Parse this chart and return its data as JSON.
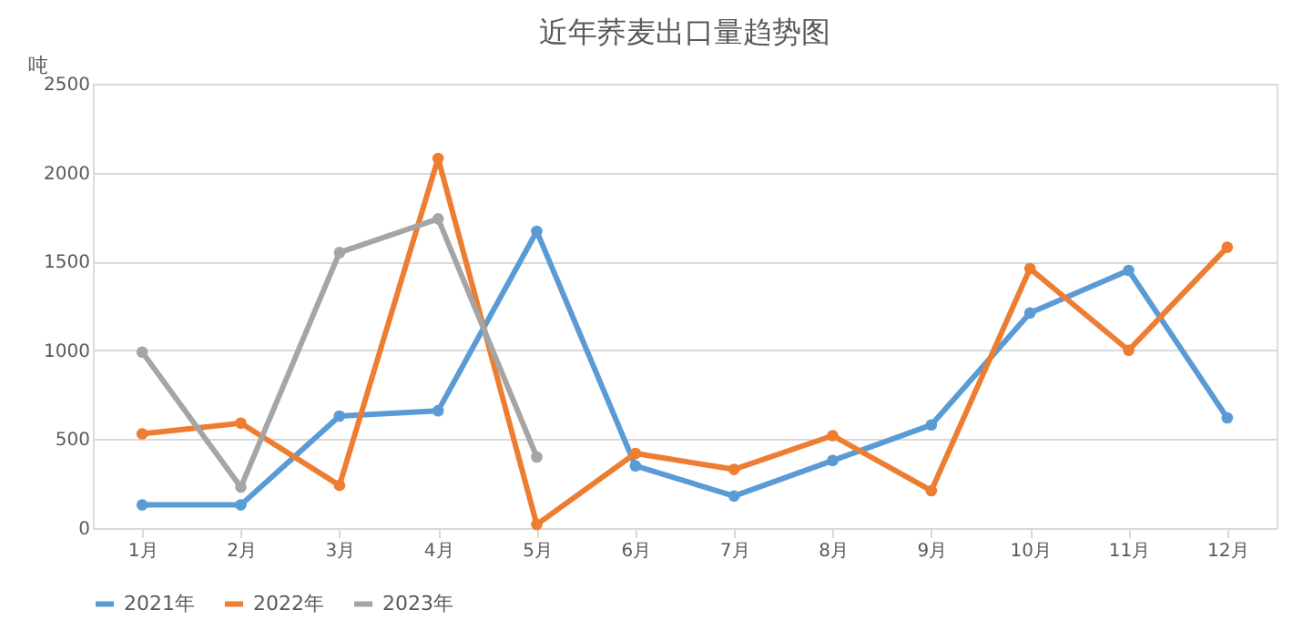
{
  "chart_data": {
    "type": "line",
    "title": "近年荞麦出口量趋势图",
    "ylabel": "吨",
    "categories": [
      "1月",
      "2月",
      "3月",
      "4月",
      "5月",
      "6月",
      "7月",
      "8月",
      "9月",
      "10月",
      "11月",
      "12月"
    ],
    "series": [
      {
        "name": "2021年",
        "color": "#5b9bd5",
        "values": [
          130,
          130,
          630,
          660,
          1670,
          350,
          180,
          380,
          580,
          1210,
          1450,
          620
        ]
      },
      {
        "name": "2022年",
        "color": "#ed7d31",
        "values": [
          530,
          590,
          240,
          2080,
          20,
          420,
          330,
          520,
          210,
          1460,
          1000,
          1580
        ]
      },
      {
        "name": "2023年",
        "color": "#a5a5a5",
        "values": [
          990,
          230,
          1550,
          1740,
          400,
          null,
          null,
          null,
          null,
          null,
          null,
          null
        ]
      }
    ],
    "ylim": [
      0,
      2500
    ],
    "yticks": [
      0,
      500,
      1000,
      1500,
      2000,
      2500
    ],
    "grid": "y",
    "legend": "bottom",
    "marker": "circle",
    "line_style": "solid"
  }
}
